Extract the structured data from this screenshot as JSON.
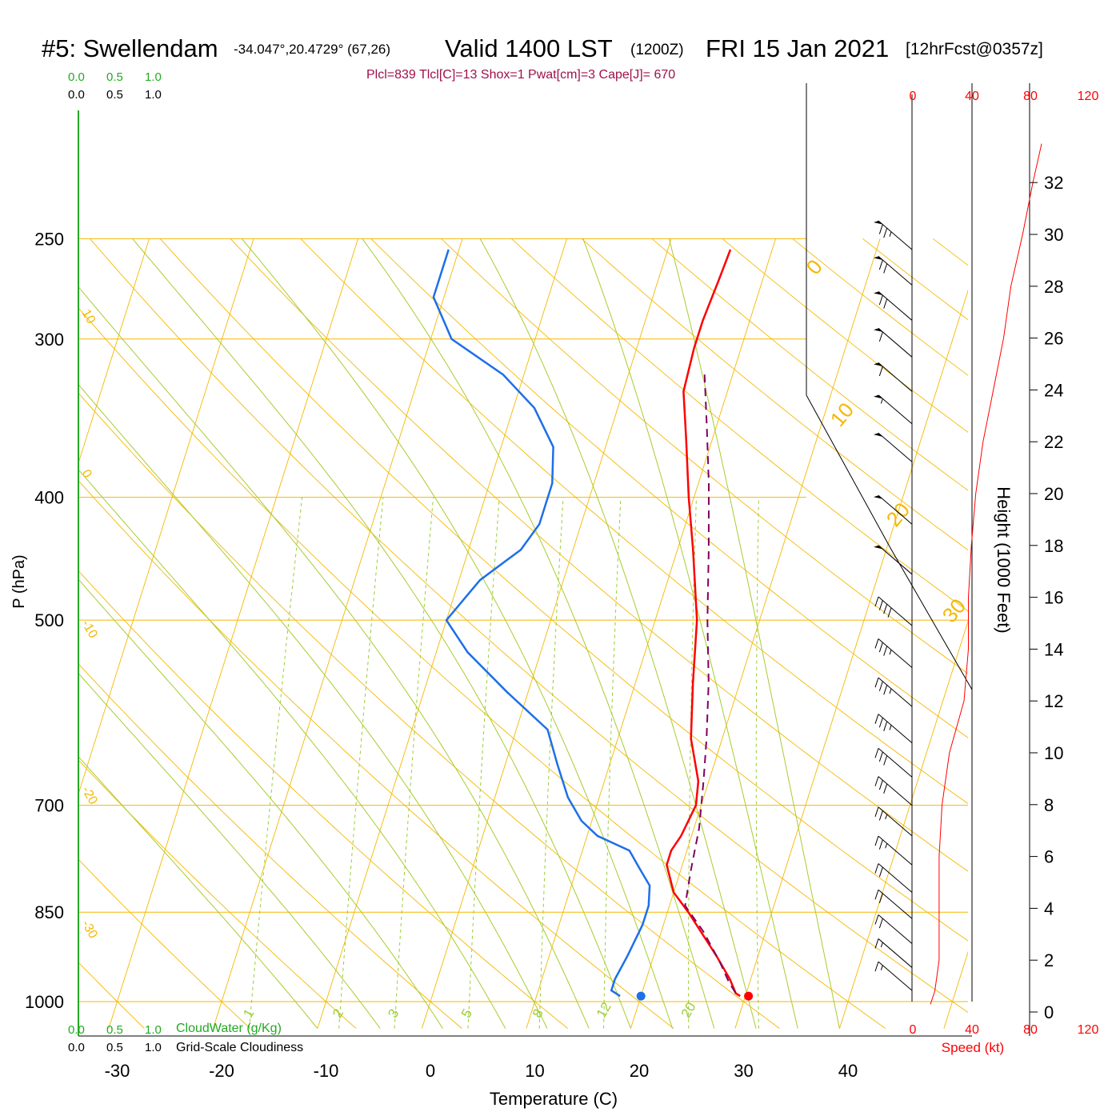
{
  "header": {
    "station": "#5: Swellendam",
    "coords": "-34.047°,20.4729° (67,26)",
    "valid": "Valid 1400 LST",
    "utc": "(1200Z)",
    "date": "FRI 15 Jan 2021",
    "forecast": "[12hrFcst@0357z]",
    "indices": "Plcl=839 Tlcl[C]=13 Shox=1 Pwat[cm]=3 Cape[J]= 670"
  },
  "colors": {
    "isobar": "#f5b800",
    "isotherm": "#f5b800",
    "dry_adiabat": "#f5b800",
    "moist_adiabat": "#a8cc30",
    "mixing_ratio": "#9acd32",
    "temperature": "#ff0000",
    "dewpoint": "#1e6fe8",
    "parcel": "#800060",
    "cloud_axis": "#22aa22",
    "speed": "#ff0000",
    "indices_text": "#a0104a"
  },
  "labels": {
    "cloud_top": [
      "0.0",
      "0.5",
      "1.0"
    ],
    "cloud_bottom": [
      "0.0",
      "0.5",
      "1.0"
    ],
    "cloudwater": "CloudWater (g/Kg)",
    "cloudiness": "Grid-Scale Cloudiness",
    "speed_axis": "Speed (kt)",
    "speed_ticks": [
      "0",
      "40",
      "80",
      "120"
    ],
    "height_axis": "Height (1000 Feet)"
  },
  "chart_data": {
    "type": "line",
    "title": "#5: Swellendam",
    "xlabel": "Temperature (C)",
    "ylabel": "P (hPa)",
    "x_ticks": [
      -30,
      -20,
      -10,
      0,
      10,
      20,
      30,
      40
    ],
    "p_ticks": [
      250,
      300,
      400,
      500,
      700,
      850,
      1000
    ],
    "isotherm_labels": [
      "10",
      "0",
      "-10",
      "-20",
      "-30"
    ],
    "right_isotherm_labels": [
      "0",
      "10",
      "20",
      "30"
    ],
    "mixing_ratio_labels": [
      "1",
      "2",
      "3",
      "5",
      "8",
      "12",
      "20"
    ],
    "height_ticks_kft": [
      0,
      2,
      4,
      6,
      8,
      10,
      12,
      14,
      16,
      18,
      20,
      22,
      24,
      26,
      28,
      30,
      32
    ],
    "series": [
      {
        "name": "temperature",
        "points": [
          [
            6.0,
            255
          ],
          [
            5.8,
            270
          ],
          [
            5.5,
            290
          ],
          [
            5.5,
            305
          ],
          [
            5.8,
            330
          ],
          [
            7.5,
            360
          ],
          [
            9.5,
            400
          ],
          [
            11.5,
            440
          ],
          [
            14,
            500
          ],
          [
            15.5,
            560
          ],
          [
            17,
            620
          ],
          [
            19,
            670
          ],
          [
            19.5,
            700
          ],
          [
            19,
            740
          ],
          [
            18.5,
            760
          ],
          [
            18.5,
            780
          ],
          [
            20,
            820
          ],
          [
            22,
            850
          ],
          [
            26,
            920
          ],
          [
            28,
            960
          ],
          [
            29,
            985
          ],
          [
            29.5,
            990
          ]
        ]
      },
      {
        "name": "dewpoint",
        "points": [
          [
            -21,
            255
          ],
          [
            -21,
            270
          ],
          [
            -21,
            278
          ],
          [
            -18,
            300
          ],
          [
            -12,
            320
          ],
          [
            -8,
            340
          ],
          [
            -5,
            365
          ],
          [
            -4,
            390
          ],
          [
            -4,
            420
          ],
          [
            -5,
            440
          ],
          [
            -8,
            465
          ],
          [
            -10,
            500
          ],
          [
            -7,
            530
          ],
          [
            -2,
            570
          ],
          [
            3,
            610
          ],
          [
            5,
            650
          ],
          [
            7,
            690
          ],
          [
            9,
            720
          ],
          [
            11,
            740
          ],
          [
            14.5,
            760
          ],
          [
            16,
            785
          ],
          [
            17.5,
            810
          ],
          [
            18,
            840
          ],
          [
            18,
            870
          ],
          [
            17.5,
            920
          ],
          [
            17,
            960
          ],
          [
            17,
            980
          ],
          [
            18,
            990
          ]
        ]
      },
      {
        "name": "parcel",
        "points": [
          [
            7.3,
            320
          ],
          [
            9,
            350
          ],
          [
            11,
            390
          ],
          [
            13,
            440
          ],
          [
            15,
            500
          ],
          [
            17,
            560
          ],
          [
            18.5,
            620
          ],
          [
            19.5,
            670
          ],
          [
            20.5,
            730
          ],
          [
            21,
            790
          ],
          [
            21.5,
            840
          ],
          [
            24,
            880
          ],
          [
            26.5,
            930
          ],
          [
            28,
            965
          ],
          [
            29,
            985
          ]
        ]
      }
    ],
    "surface_markers": [
      {
        "name": "surface temperature",
        "x": 30.3,
        "p": 990
      },
      {
        "name": "surface dewpoint",
        "x": 20.0,
        "p": 990
      }
    ],
    "wind_speed_profile_kt": [
      [
        12,
        0.3
      ],
      [
        15,
        0.8
      ],
      [
        18,
        2
      ],
      [
        18,
        4
      ],
      [
        18,
        6
      ],
      [
        20,
        8
      ],
      [
        25,
        10
      ],
      [
        35,
        12
      ],
      [
        38,
        14
      ],
      [
        38,
        16
      ],
      [
        40,
        18
      ],
      [
        43,
        20
      ],
      [
        48,
        22
      ],
      [
        55,
        24
      ],
      [
        62,
        26
      ],
      [
        67,
        28
      ],
      [
        75,
        30
      ],
      [
        82,
        32
      ],
      [
        88,
        33.5
      ]
    ],
    "wind_barbs": [
      {
        "p": 255,
        "kt": 75
      },
      {
        "p": 272,
        "kt": 70
      },
      {
        "p": 290,
        "kt": 70
      },
      {
        "p": 310,
        "kt": 60
      },
      {
        "p": 330,
        "kt": 60
      },
      {
        "p": 350,
        "kt": 55
      },
      {
        "p": 375,
        "kt": 50
      },
      {
        "p": 420,
        "kt": 50
      },
      {
        "p": 460,
        "kt": 50
      },
      {
        "p": 505,
        "kt": 40
      },
      {
        "p": 545,
        "kt": 35
      },
      {
        "p": 585,
        "kt": 35
      },
      {
        "p": 625,
        "kt": 35
      },
      {
        "p": 665,
        "kt": 30
      },
      {
        "p": 700,
        "kt": 30
      },
      {
        "p": 740,
        "kt": 25
      },
      {
        "p": 780,
        "kt": 25
      },
      {
        "p": 820,
        "kt": 20
      },
      {
        "p": 860,
        "kt": 20
      },
      {
        "p": 900,
        "kt": 20
      },
      {
        "p": 940,
        "kt": 15
      },
      {
        "p": 980,
        "kt": 15
      }
    ]
  }
}
